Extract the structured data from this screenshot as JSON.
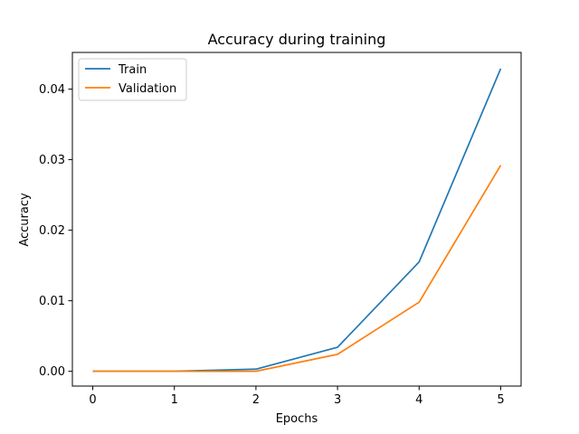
{
  "chart_data": {
    "type": "line",
    "title": "Accuracy during training",
    "xlabel": "Epochs",
    "ylabel": "Accuracy",
    "x": [
      0,
      1,
      2,
      3,
      4,
      5
    ],
    "xlim": [
      -0.25,
      5.25
    ],
    "ylim": [
      -0.0021,
      0.0452
    ],
    "xticks": [
      "0",
      "1",
      "2",
      "3",
      "4",
      "5"
    ],
    "yticks": [
      "0.00",
      "0.01",
      "0.02",
      "0.03",
      "0.04"
    ],
    "grid": false,
    "legend_position": "upper-left",
    "series": [
      {
        "name": "Train",
        "color": "#1f77b4",
        "values": [
          0.0,
          0.0,
          0.0003,
          0.0034,
          0.0155,
          0.0429
        ]
      },
      {
        "name": "Validation",
        "color": "#ff7f0e",
        "values": [
          0.0,
          0.0,
          0.0,
          0.0024,
          0.0098,
          0.0292
        ]
      }
    ]
  }
}
